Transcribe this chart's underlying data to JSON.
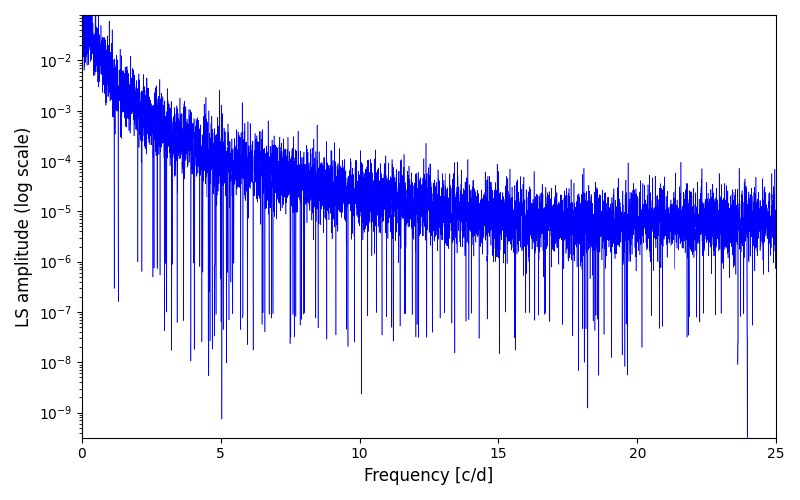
{
  "title": "",
  "xlabel": "Frequency [c/d]",
  "ylabel": "LS amplitude (log scale)",
  "line_color": "#0000ff",
  "xlim": [
    0,
    25
  ],
  "ylim_log_min": -9.5,
  "ylim_top": 0.08,
  "freq_max": 25.0,
  "n_points": 8000,
  "seed": 7,
  "figsize": [
    8.0,
    5.0
  ],
  "dpi": 100
}
